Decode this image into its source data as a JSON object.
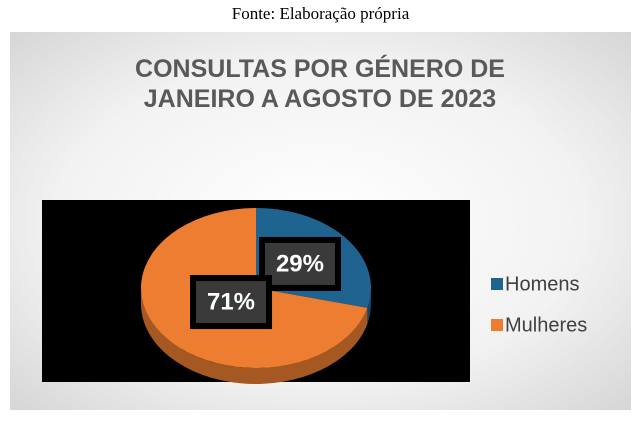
{
  "caption": "Fonte: Elaboração própria",
  "chart_data": {
    "type": "pie",
    "title": "CONSULTAS POR GÉNERO DE JANEIRO A AGOSTO DE 2023",
    "categories": [
      "Homens",
      "Mulheres"
    ],
    "values": [
      29,
      71
    ],
    "value_labels": [
      "29%",
      "71%"
    ],
    "colors": [
      "#1f6391",
      "#ed7d31"
    ],
    "legend": "right"
  }
}
